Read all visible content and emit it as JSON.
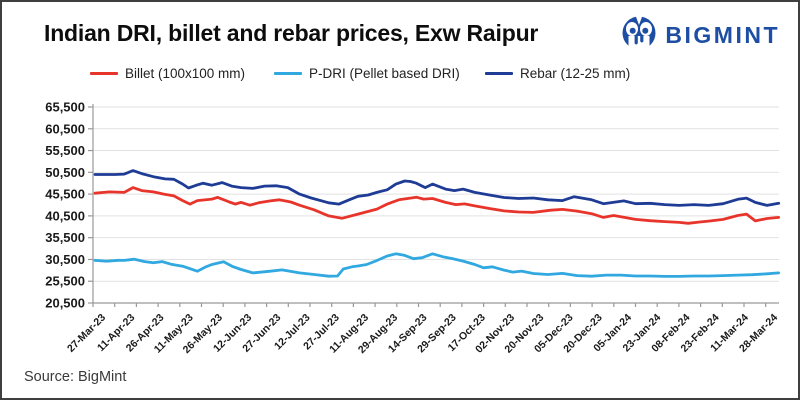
{
  "header": {
    "title": "Indian DRI, billet and rebar prices, Exw Raipur",
    "brand": "BIGMINT"
  },
  "legend": [
    {
      "label": "Billet (100x100 mm)",
      "color": "#e8352b"
    },
    {
      "label": "P-DRI (Pellet based DRI)",
      "color": "#31a8e0"
    },
    {
      "label": "Rebar (12-25 mm)",
      "color": "#1e3c96"
    }
  ],
  "footer": {
    "source": "Source: BigMint"
  },
  "colors": {
    "brand_blue": "#1d4ea3",
    "gridline": "#e2e2e2",
    "axis": "#999999",
    "tick_text": "#1a1a1a"
  },
  "chart_data": {
    "type": "line",
    "title": "Indian DRI, billet and rebar prices, Exw Raipur",
    "grid": true,
    "legend_position": "top",
    "ylim": [
      20500,
      65500
    ],
    "y_tick_step": 5000,
    "y_ticks": [
      "65,500",
      "60,500",
      "55,500",
      "50,500",
      "45,500",
      "40,500",
      "35,500",
      "30,500",
      "25,500",
      "20,500"
    ],
    "x_unit": "label_index (0 = first date label, 23 = last; fractional = between labels)",
    "x_labels": [
      "27-Mar-23",
      "11-Apr-23",
      "26-Apr-23",
      "11-May-23",
      "26-May-23",
      "12-Jun-23",
      "27-Jun-23",
      "12-Jul-23",
      "27-Jul-23",
      "11-Aug-23",
      "29-Aug-23",
      "14-Sep-23",
      "29-Sep-23",
      "17-Oct-23",
      "02-Nov-23",
      "20-Nov-23",
      "05-Dec-23",
      "20-Dec-23",
      "05-Jan-24",
      "23-Jan-24",
      "08-Feb-24",
      "23-Feb-24",
      "11-Mar-24",
      "28-Mar-24"
    ],
    "series": [
      {
        "name": "Billet (100x100 mm)",
        "color": "#e8352b",
        "points": [
          [
            0,
            45700
          ],
          [
            0.5,
            46000
          ],
          [
            1,
            45900
          ],
          [
            1.3,
            47000
          ],
          [
            1.6,
            46300
          ],
          [
            2,
            46000
          ],
          [
            2.35,
            45500
          ],
          [
            2.7,
            45100
          ],
          [
            3,
            44000
          ],
          [
            3.25,
            43200
          ],
          [
            3.5,
            44000
          ],
          [
            4,
            44350
          ],
          [
            4.2,
            44750
          ],
          [
            4.6,
            43700
          ],
          [
            4.8,
            43200
          ],
          [
            5,
            43600
          ],
          [
            5.3,
            42950
          ],
          [
            5.6,
            43500
          ],
          [
            6,
            43950
          ],
          [
            6.3,
            44200
          ],
          [
            6.7,
            43700
          ],
          [
            7,
            42950
          ],
          [
            7.5,
            41900
          ],
          [
            8,
            40500
          ],
          [
            8.45,
            39950
          ],
          [
            9,
            40900
          ],
          [
            9.65,
            42050
          ],
          [
            10,
            43200
          ],
          [
            10.4,
            44200
          ],
          [
            11,
            44800
          ],
          [
            11.25,
            44350
          ],
          [
            11.55,
            44500
          ],
          [
            12,
            43600
          ],
          [
            12.35,
            43100
          ],
          [
            12.65,
            43250
          ],
          [
            13,
            42800
          ],
          [
            13.5,
            42200
          ],
          [
            14,
            41650
          ],
          [
            14.5,
            41400
          ],
          [
            15,
            41300
          ],
          [
            15.6,
            41800
          ],
          [
            16,
            42000
          ],
          [
            16.5,
            41600
          ],
          [
            17,
            41000
          ],
          [
            17.4,
            40150
          ],
          [
            17.75,
            40600
          ],
          [
            18,
            40300
          ],
          [
            18.5,
            39700
          ],
          [
            19,
            39400
          ],
          [
            19.5,
            39200
          ],
          [
            20,
            39000
          ],
          [
            20.3,
            38800
          ],
          [
            20.7,
            39100
          ],
          [
            21,
            39300
          ],
          [
            21.5,
            39700
          ],
          [
            22,
            40600
          ],
          [
            22.3,
            40900
          ],
          [
            22.6,
            39350
          ],
          [
            23,
            39900
          ],
          [
            23.4,
            40150
          ]
        ]
      },
      {
        "name": "P-DRI (Pellet based DRI)",
        "color": "#31a8e0",
        "points": [
          [
            0,
            30270
          ],
          [
            0.4,
            30100
          ],
          [
            0.8,
            30300
          ],
          [
            1,
            30270
          ],
          [
            1.35,
            30550
          ],
          [
            1.7,
            30000
          ],
          [
            2,
            29730
          ],
          [
            2.3,
            30000
          ],
          [
            2.6,
            29400
          ],
          [
            3,
            28960
          ],
          [
            3.5,
            27810
          ],
          [
            3.8,
            28800
          ],
          [
            4,
            29350
          ],
          [
            4.4,
            29960
          ],
          [
            4.7,
            28900
          ],
          [
            5,
            28190
          ],
          [
            5.4,
            27420
          ],
          [
            6,
            27810
          ],
          [
            6.4,
            28100
          ],
          [
            7,
            27420
          ],
          [
            7.5,
            27040
          ],
          [
            8,
            26650
          ],
          [
            8.3,
            26700
          ],
          [
            8.5,
            28300
          ],
          [
            8.8,
            28800
          ],
          [
            9,
            29000
          ],
          [
            9.3,
            29350
          ],
          [
            9.6,
            30130
          ],
          [
            10,
            31280
          ],
          [
            10.3,
            31800
          ],
          [
            10.6,
            31430
          ],
          [
            10.9,
            30670
          ],
          [
            11.2,
            30900
          ],
          [
            11.55,
            31800
          ],
          [
            11.9,
            31130
          ],
          [
            12.25,
            30670
          ],
          [
            12.6,
            30130
          ],
          [
            13,
            29350
          ],
          [
            13.3,
            28590
          ],
          [
            13.6,
            28820
          ],
          [
            14,
            28050
          ],
          [
            14.3,
            27590
          ],
          [
            14.6,
            27820
          ],
          [
            15,
            27280
          ],
          [
            15.5,
            27040
          ],
          [
            16,
            27300
          ],
          [
            16.5,
            26800
          ],
          [
            17,
            26650
          ],
          [
            17.5,
            26900
          ],
          [
            18,
            26900
          ],
          [
            18.5,
            26700
          ],
          [
            19,
            26700
          ],
          [
            19.5,
            26600
          ],
          [
            20,
            26600
          ],
          [
            20.5,
            26700
          ],
          [
            21,
            26700
          ],
          [
            21.5,
            26800
          ],
          [
            22,
            26900
          ],
          [
            22.5,
            27000
          ],
          [
            23,
            27200
          ],
          [
            23.4,
            27400
          ]
        ]
      },
      {
        "name": "Rebar (12-25 mm)",
        "color": "#1e3c96",
        "points": [
          [
            0,
            50000
          ],
          [
            0.7,
            50000
          ],
          [
            1,
            50100
          ],
          [
            1.3,
            50900
          ],
          [
            1.6,
            50200
          ],
          [
            2,
            49500
          ],
          [
            2.4,
            49000
          ],
          [
            2.7,
            48900
          ],
          [
            3,
            47800
          ],
          [
            3.2,
            46900
          ],
          [
            3.45,
            47500
          ],
          [
            3.7,
            48000
          ],
          [
            4,
            47550
          ],
          [
            4.35,
            48150
          ],
          [
            4.7,
            47300
          ],
          [
            5,
            47000
          ],
          [
            5.4,
            46800
          ],
          [
            5.8,
            47350
          ],
          [
            6.2,
            47400
          ],
          [
            6.6,
            47000
          ],
          [
            7,
            45500
          ],
          [
            7.4,
            44600
          ],
          [
            8,
            43500
          ],
          [
            8.35,
            43200
          ],
          [
            8.7,
            44200
          ],
          [
            9,
            45000
          ],
          [
            9.35,
            45300
          ],
          [
            9.65,
            45900
          ],
          [
            10,
            46500
          ],
          [
            10.3,
            47800
          ],
          [
            10.6,
            48500
          ],
          [
            10.8,
            48400
          ],
          [
            11,
            48000
          ],
          [
            11.3,
            47000
          ],
          [
            11.55,
            47800
          ],
          [
            12,
            46650
          ],
          [
            12.3,
            46300
          ],
          [
            12.6,
            46650
          ],
          [
            13,
            45890
          ],
          [
            13.5,
            45300
          ],
          [
            14,
            44730
          ],
          [
            14.5,
            44500
          ],
          [
            15,
            44600
          ],
          [
            15.5,
            44200
          ],
          [
            16,
            44000
          ],
          [
            16.4,
            44900
          ],
          [
            17,
            44200
          ],
          [
            17.4,
            43300
          ],
          [
            18.1,
            43950
          ],
          [
            18.5,
            43300
          ],
          [
            19,
            43400
          ],
          [
            19.5,
            43100
          ],
          [
            20,
            42900
          ],
          [
            20.5,
            43100
          ],
          [
            21,
            42900
          ],
          [
            21.5,
            43300
          ],
          [
            22,
            44300
          ],
          [
            22.3,
            44580
          ],
          [
            22.6,
            43600
          ],
          [
            23,
            42900
          ],
          [
            23.4,
            43400
          ]
        ]
      }
    ]
  }
}
